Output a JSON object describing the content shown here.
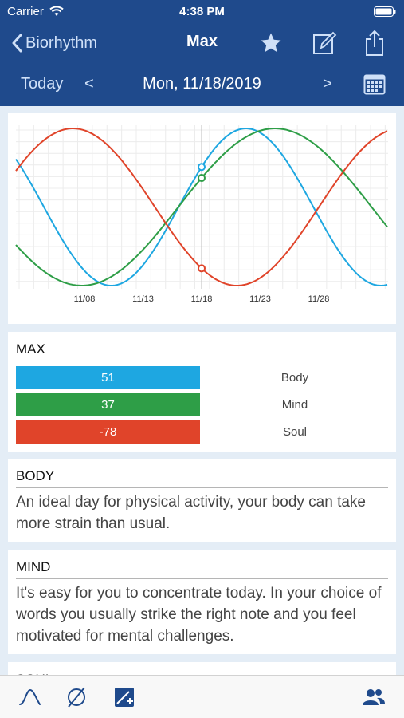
{
  "status": {
    "carrier": "Carrier",
    "time": "4:38 PM"
  },
  "nav": {
    "back_label": "Biorhythm",
    "title": "Max"
  },
  "datebar": {
    "today": "Today",
    "prev": "<",
    "next": ">",
    "date": "Mon, 11/18/2019"
  },
  "colors": {
    "body": "#1ea7e1",
    "mind": "#2e9e47",
    "soul": "#e0442a",
    "nav_bg": "#1f4a8c",
    "tint": "#1f4a8c"
  },
  "chart_data": {
    "type": "line",
    "x_ticks": [
      "11/08",
      "11/13",
      "11/18",
      "11/23",
      "11/28"
    ],
    "selected_x": "11/18",
    "ylim": [
      -100,
      100
    ],
    "grid": true,
    "series": [
      {
        "name": "Body",
        "period_days": 23,
        "value_at_selected": 51
      },
      {
        "name": "Mind",
        "period_days": 33,
        "value_at_selected": 37
      },
      {
        "name": "Soul",
        "period_days": 28,
        "value_at_selected": -78
      }
    ]
  },
  "values": {
    "title": "MAX",
    "rows": [
      {
        "value": "51",
        "label": "Body"
      },
      {
        "value": "37",
        "label": "Mind"
      },
      {
        "value": "-78",
        "label": "Soul"
      }
    ]
  },
  "sections": {
    "body": {
      "title": "BODY",
      "text": "An ideal day for physical activity, your body can take more strain than usual."
    },
    "mind": {
      "title": "MIND",
      "text": "It's easy for you to concentrate today. In your choice of words you usually strike the right note and you feel motivated for mental challenges."
    },
    "soul": {
      "title": "SOUL"
    }
  },
  "icons": [
    "chevron-left-icon",
    "star-icon",
    "edit-icon",
    "share-icon",
    "calendar-icon",
    "wave-icon",
    "diameter-icon",
    "add-chart-icon",
    "people-icon"
  ]
}
